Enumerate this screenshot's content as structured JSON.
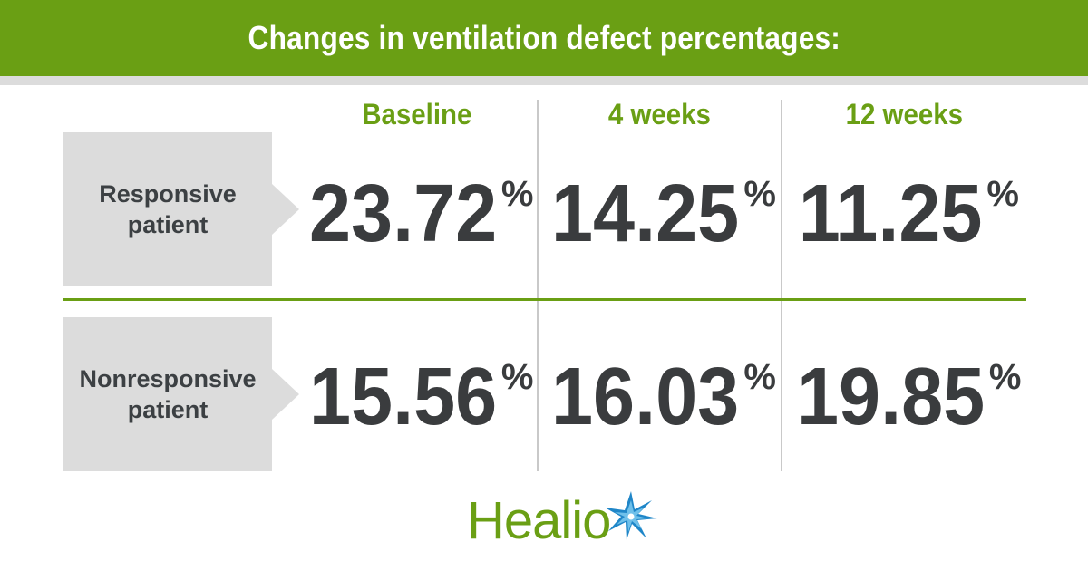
{
  "banner": {
    "title": "Changes in ventilation defect percentages:"
  },
  "columns": [
    "Baseline",
    "4 weeks",
    "12 weeks"
  ],
  "rows": [
    {
      "label": "Responsive\npatient",
      "values": [
        "23.72",
        "14.25",
        "11.25"
      ]
    },
    {
      "label": "Nonresponsive\npatient",
      "values": [
        "15.56",
        "16.03",
        "19.85"
      ]
    }
  ],
  "percent_symbol": "%",
  "logo": {
    "text": "Healio",
    "icon": "star-burst-icon"
  },
  "colors": {
    "brand_green": "#6a9f14",
    "text_dark": "#3a3c3e",
    "label_bg": "#dcdcdc",
    "star_blue": "#1f86c8"
  }
}
